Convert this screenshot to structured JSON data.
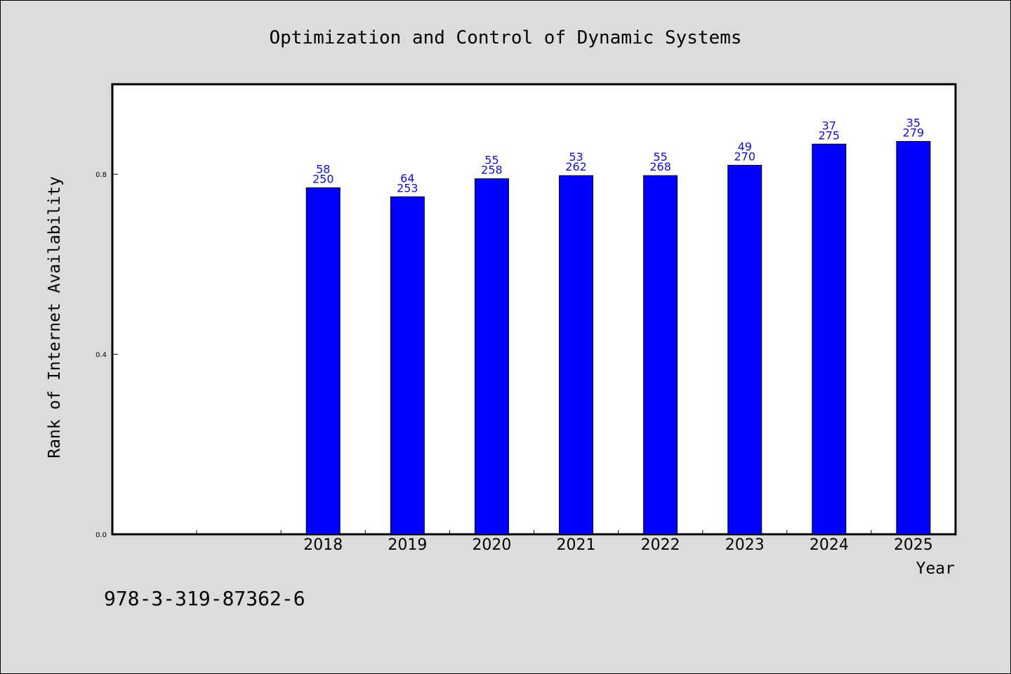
{
  "chart_data": {
    "type": "bar",
    "title": "Optimization and Control of Dynamic Systems",
    "xlabel": "Year",
    "ylabel": "Rank of Internet Availability",
    "categories": [
      "2018",
      "2019",
      "2020",
      "2021",
      "2022",
      "2023",
      "2024",
      "2025"
    ],
    "values": [
      0.77,
      0.75,
      0.79,
      0.797,
      0.797,
      0.82,
      0.867,
      0.873
    ],
    "data_labels_top": [
      "58",
      "64",
      "55",
      "53",
      "55",
      "49",
      "37",
      "35"
    ],
    "data_labels_bottom": [
      "250",
      "253",
      "258",
      "262",
      "268",
      "270",
      "275",
      "279"
    ],
    "ylim": [
      0,
      1.0
    ],
    "yticks": [
      "0.0",
      "0.4",
      "0.8"
    ],
    "ytick_values": [
      0.0,
      0.4,
      0.8
    ],
    "empty_leading_slots": 2,
    "grid": false,
    "bar_color": "#0000ff",
    "label_color": "#1010c8"
  },
  "footnote": "978-3-319-87362-6"
}
